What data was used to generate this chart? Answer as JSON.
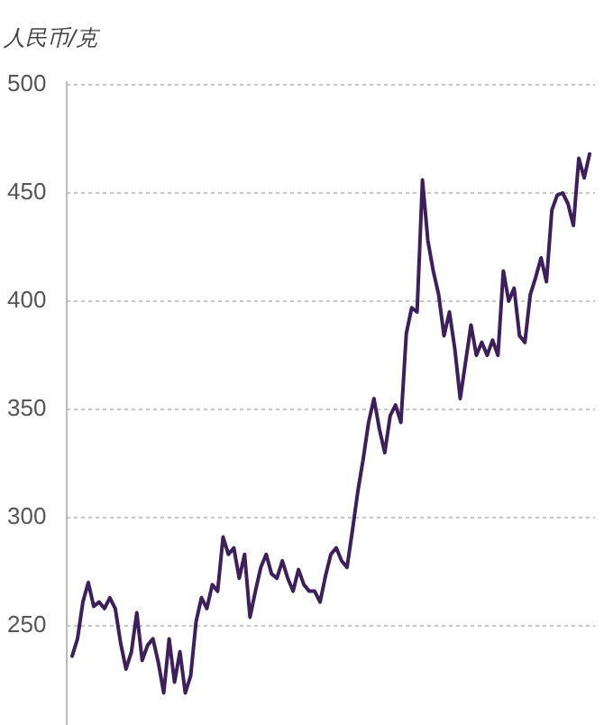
{
  "chart_data": {
    "type": "line",
    "ylabel": "人民币/克",
    "categories": [
      null,
      null,
      null,
      null,
      null,
      null,
      null,
      null,
      null,
      null,
      null,
      null,
      null,
      null,
      null,
      null,
      null,
      null,
      null,
      null,
      null,
      null,
      null,
      null,
      null,
      null,
      null,
      null,
      null,
      null,
      null,
      null,
      null,
      null,
      null,
      null,
      null,
      null,
      null,
      null,
      null,
      null,
      null,
      null,
      null,
      null,
      null,
      null,
      null,
      null,
      null,
      null,
      null,
      null,
      null,
      null,
      null,
      null,
      null,
      null,
      null,
      null,
      null,
      null,
      null,
      null,
      null,
      null,
      null,
      null,
      null,
      null,
      null,
      null,
      null,
      null,
      null,
      null,
      null,
      null,
      null,
      null,
      null,
      null,
      null,
      null,
      null,
      null,
      null,
      null,
      null,
      null,
      null,
      null,
      null,
      null,
      null
    ],
    "series": [
      {
        "color": "#3d1f5c",
        "values": [
          236,
          244,
          261,
          270,
          259,
          261,
          258,
          263,
          258,
          242,
          230,
          238,
          256,
          234,
          241,
          244,
          233,
          219,
          244,
          224,
          238,
          219,
          227,
          252,
          263,
          258,
          269,
          266,
          291,
          283,
          286,
          272,
          283,
          254,
          266,
          277,
          283,
          274,
          272,
          280,
          272,
          266,
          276,
          269,
          266,
          266,
          261,
          273,
          283,
          286,
          280,
          277,
          294,
          312,
          327,
          344,
          355,
          341,
          330,
          347,
          352,
          344,
          385,
          397,
          395,
          456,
          428,
          414,
          403,
          384,
          395,
          378,
          355,
          372,
          389,
          375,
          381,
          375,
          382,
          375,
          414,
          400,
          406,
          384,
          381,
          403,
          411,
          420,
          409,
          442,
          449,
          450,
          445,
          435,
          466,
          457,
          468
        ]
      }
    ],
    "ylim": [
      205,
      500
    ],
    "yticks": [
      250,
      300,
      350,
      400,
      450,
      500
    ],
    "grid": "y",
    "marker": "none",
    "line_style": "solid"
  }
}
